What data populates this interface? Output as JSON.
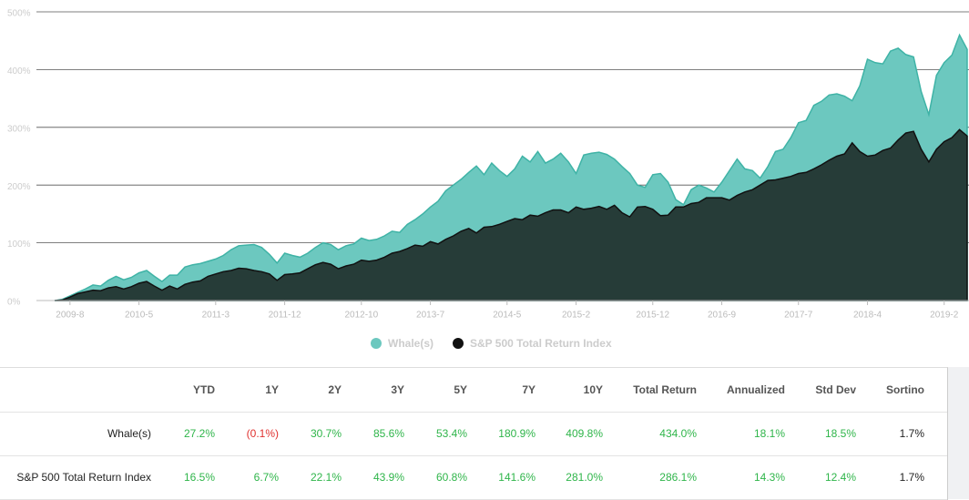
{
  "chart_data": {
    "type": "area",
    "categories": [
      null,
      null,
      "2009-8",
      null,
      null,
      null,
      null,
      null,
      null,
      null,
      null,
      "2010-5",
      null,
      null,
      null,
      null,
      null,
      null,
      null,
      null,
      null,
      "2011-3",
      null,
      null,
      null,
      null,
      null,
      null,
      null,
      null,
      "2011-12",
      null,
      null,
      null,
      null,
      null,
      null,
      null,
      null,
      null,
      "2012-10",
      null,
      null,
      null,
      null,
      null,
      null,
      null,
      null,
      "2013-7",
      null,
      null,
      null,
      null,
      null,
      null,
      null,
      null,
      null,
      "2014-5",
      null,
      null,
      null,
      null,
      null,
      null,
      null,
      null,
      "2015-2",
      null,
      null,
      null,
      null,
      null,
      null,
      null,
      null,
      null,
      "2015-12",
      null,
      null,
      null,
      null,
      null,
      null,
      null,
      null,
      "2016-9",
      null,
      null,
      null,
      null,
      null,
      null,
      null,
      null,
      null,
      "2017-7",
      null,
      null,
      null,
      null,
      null,
      null,
      null,
      null,
      "2018-4",
      null,
      null,
      null,
      null,
      null,
      null,
      null,
      null,
      null,
      "2019-2",
      null,
      null,
      null
    ],
    "series": [
      {
        "name": "Whale(s)",
        "color": "#6cc8bf",
        "stroke": "#3fb3a6",
        "values": [
          0,
          2,
          8,
          14,
          20,
          27,
          25,
          35,
          42,
          36,
          40,
          48,
          52,
          42,
          33,
          44,
          44,
          58,
          62,
          64,
          68,
          72,
          78,
          88,
          95,
          96,
          97,
          92,
          80,
          65,
          82,
          78,
          75,
          82,
          92,
          100,
          97,
          88,
          95,
          98,
          108,
          104,
          106,
          112,
          120,
          118,
          132,
          140,
          150,
          162,
          172,
          190,
          200,
          210,
          222,
          233,
          218,
          238,
          225,
          215,
          228,
          250,
          240,
          258,
          238,
          245,
          255,
          240,
          220,
          252,
          255,
          257,
          253,
          245,
          232,
          220,
          200,
          196,
          218,
          220,
          205,
          175,
          166,
          192,
          200,
          195,
          188,
          205,
          225,
          245,
          228,
          225,
          212,
          232,
          258,
          262,
          282,
          308,
          312,
          338,
          345,
          356,
          358,
          354,
          346,
          372,
          418,
          412,
          410,
          432,
          437,
          426,
          422,
          362,
          322,
          390,
          412,
          425,
          460,
          435
        ]
      },
      {
        "name": "S&P 500 Total Return Index",
        "color": "#263c38",
        "stroke": "#111111",
        "values": [
          0,
          1,
          6,
          12,
          15,
          18,
          17,
          22,
          24,
          20,
          24,
          30,
          33,
          25,
          18,
          25,
          20,
          28,
          32,
          34,
          42,
          46,
          50,
          52,
          56,
          55,
          52,
          50,
          46,
          35,
          45,
          46,
          48,
          55,
          62,
          66,
          63,
          55,
          60,
          63,
          70,
          68,
          70,
          75,
          82,
          85,
          90,
          96,
          94,
          102,
          98,
          106,
          112,
          120,
          125,
          117,
          127,
          128,
          132,
          137,
          142,
          140,
          148,
          146,
          152,
          157,
          157,
          152,
          162,
          158,
          160,
          163,
          158,
          165,
          152,
          145,
          162,
          163,
          158,
          147,
          148,
          162,
          162,
          168,
          170,
          178,
          178,
          178,
          174,
          182,
          188,
          192,
          200,
          208,
          209,
          212,
          215,
          220,
          222,
          228,
          235,
          243,
          250,
          254,
          273,
          258,
          250,
          252,
          260,
          264,
          278,
          290,
          293,
          262,
          240,
          262,
          275,
          282,
          296,
          285
        ]
      }
    ],
    "ylim": [
      0,
      500
    ],
    "yticks": [
      {
        "value": 0,
        "label": "0%"
      },
      {
        "value": 100,
        "label": "100%"
      },
      {
        "value": 200,
        "label": "200%"
      },
      {
        "value": 300,
        "label": "300%"
      },
      {
        "value": 400,
        "label": "400%"
      },
      {
        "value": 500,
        "label": "500%"
      }
    ],
    "grid": true,
    "legend": "bottom"
  },
  "table": {
    "headers": [
      "YTD",
      "1Y",
      "2Y",
      "3Y",
      "5Y",
      "7Y",
      "10Y",
      "Total Return",
      "Annualized",
      "Std Dev",
      "Sortino"
    ],
    "rows": [
      [
        "Whale(s)",
        "27.2%",
        "(0.1%)",
        "30.7%",
        "85.6%",
        "53.4%",
        "180.9%",
        "409.8%",
        "434.0%",
        "18.1%",
        "18.5%",
        "1.7%"
      ],
      [
        "S&P 500 Total Return Index",
        "16.5%",
        "6.7%",
        "22.1%",
        "43.9%",
        "60.8%",
        "141.6%",
        "281.0%",
        "286.1%",
        "14.3%",
        "12.4%",
        "1.7%"
      ]
    ]
  }
}
